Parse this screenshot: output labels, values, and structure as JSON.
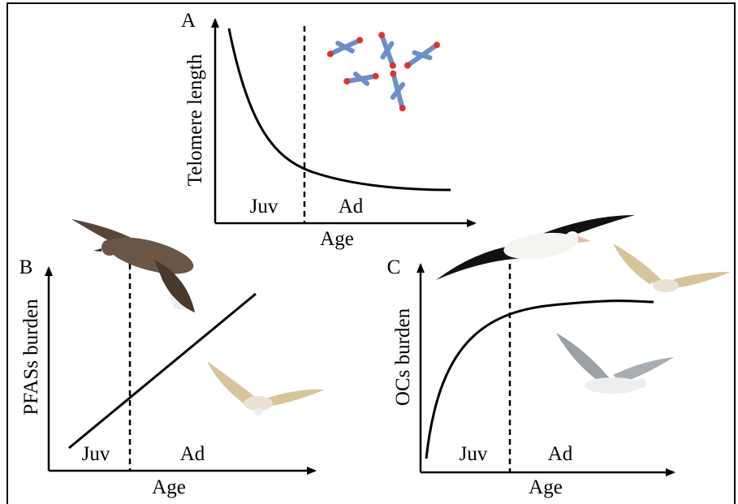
{
  "panels": [
    {
      "letter": "A",
      "y_label": "Telomere length",
      "x_label": "Age",
      "juv": "Juv",
      "ad": "Ad"
    },
    {
      "letter": "B",
      "y_label": "PFASs burden",
      "x_label": "Age",
      "juv": "Juv",
      "ad": "Ad"
    },
    {
      "letter": "C",
      "y_label": "OCs burden",
      "x_label": "Age",
      "juv": "Juv",
      "ad": "Ad"
    }
  ]
}
